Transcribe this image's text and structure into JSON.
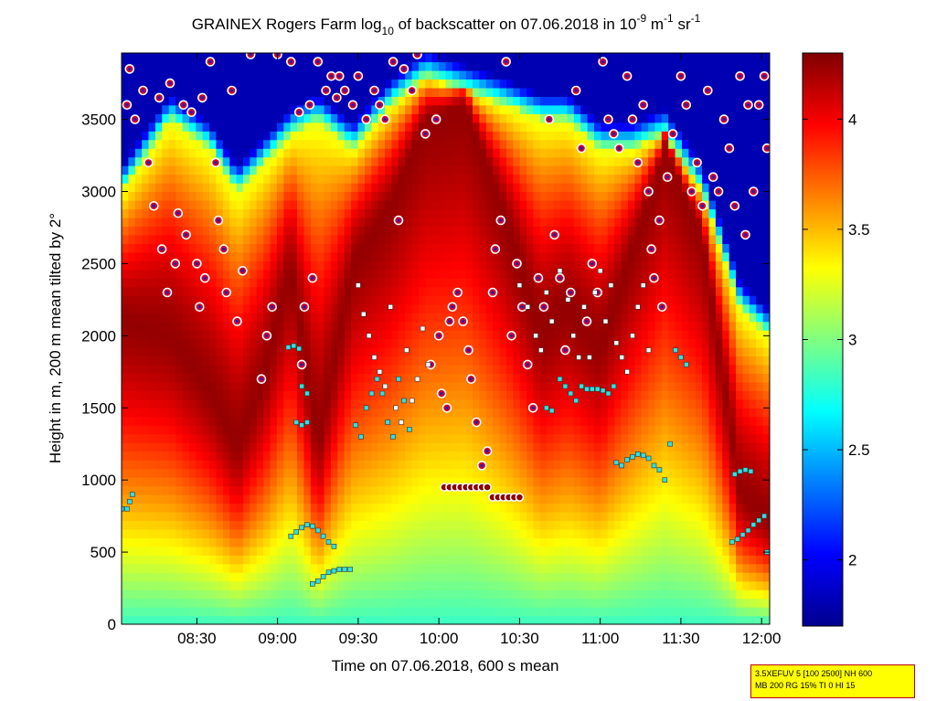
{
  "chart_data": {
    "type": "heatmap",
    "title": {
      "prefix": "GRAINEX Rogers Farm log",
      "sub": "10",
      "middle": " of backscatter on 07.06.2018 in 10",
      "sup1": "-9",
      "unit1": " m",
      "sup2": "-1",
      "unit2": " sr",
      "sup3": "-1"
    },
    "xlabel": "Time on 07.06.2018, 600 s mean",
    "ylabel": "Height in m, 200 m mean tilted by 2°",
    "xticks": [
      "08:30",
      "09:00",
      "09:30",
      "10:00",
      "10:30",
      "11:00",
      "11:30",
      "12:00"
    ],
    "xlim_minutes": [
      482,
      723
    ],
    "yticks": [
      0,
      500,
      1000,
      1500,
      2000,
      2500,
      3000,
      3500
    ],
    "ylim": [
      0,
      3960
    ],
    "colorbar": {
      "ticks": [
        2,
        2.5,
        3,
        3.5,
        4
      ],
      "range": [
        1.7,
        4.3
      ]
    },
    "field_columns": [
      {
        "t": 482,
        "peak": 2100,
        "top": 3000
      },
      {
        "t": 500,
        "peak": 2000,
        "top": 3500
      },
      {
        "t": 515,
        "peak": 1600,
        "top": 3300
      },
      {
        "t": 525,
        "peak": 1200,
        "top": 3000
      },
      {
        "t": 535,
        "peak": 1700,
        "top": 3200
      },
      {
        "t": 545,
        "peak": 2500,
        "top": 3400
      },
      {
        "t": 555,
        "peak": 1200,
        "top": 3500
      },
      {
        "t": 568,
        "peak": 2500,
        "top": 3300
      },
      {
        "t": 582,
        "peak": 2900,
        "top": 3600
      },
      {
        "t": 595,
        "peak": 3500,
        "top": 3800
      },
      {
        "t": 610,
        "peak": 3600,
        "top": 3700
      },
      {
        "t": 625,
        "peak": 2800,
        "top": 3600
      },
      {
        "t": 638,
        "peak": 2000,
        "top": 3500
      },
      {
        "t": 648,
        "peak": 2200,
        "top": 3500
      },
      {
        "t": 660,
        "peak": 1900,
        "top": 3300
      },
      {
        "t": 672,
        "peak": 2600,
        "top": 3300
      },
      {
        "t": 684,
        "peak": 3300,
        "top": 3400
      },
      {
        "t": 698,
        "peak": 2700,
        "top": 3000
      },
      {
        "t": 712,
        "peak": 900,
        "top": 2200
      },
      {
        "t": 723,
        "peak": 700,
        "top": 2000
      }
    ],
    "ceiling_markers": [
      [
        484,
        3600
      ],
      [
        485,
        3850
      ],
      [
        487,
        3500
      ],
      [
        490,
        3700
      ],
      [
        492,
        3200
      ],
      [
        494,
        2900
      ],
      [
        496,
        3650
      ],
      [
        497,
        2600
      ],
      [
        499,
        2300
      ],
      [
        500,
        3750
      ],
      [
        502,
        2500
      ],
      [
        503,
        2850
      ],
      [
        505,
        3600
      ],
      [
        506,
        2700
      ],
      [
        508,
        3550
      ],
      [
        510,
        2500
      ],
      [
        511,
        2200
      ],
      [
        512,
        3650
      ],
      [
        513,
        2400
      ],
      [
        515,
        3900
      ],
      [
        517,
        3200
      ],
      [
        518,
        2800
      ],
      [
        520,
        2600
      ],
      [
        521,
        2300
      ],
      [
        523,
        3700
      ],
      [
        525,
        2100
      ],
      [
        527,
        2450
      ],
      [
        530,
        3950
      ],
      [
        534,
        1700
      ],
      [
        536,
        2000
      ],
      [
        538,
        2200
      ],
      [
        540,
        3950
      ],
      [
        545,
        3900
      ],
      [
        548,
        3550
      ],
      [
        549,
        1800
      ],
      [
        550,
        2200
      ],
      [
        552,
        3600
      ],
      [
        553,
        2400
      ],
      [
        555,
        3900
      ],
      [
        558,
        3700
      ],
      [
        560,
        3800
      ],
      [
        562,
        3650
      ],
      [
        563,
        3800
      ],
      [
        565,
        3700
      ],
      [
        568,
        3600
      ],
      [
        570,
        3800
      ],
      [
        573,
        3500
      ],
      [
        576,
        3700
      ],
      [
        578,
        3600
      ],
      [
        580,
        3500
      ],
      [
        583,
        3900
      ],
      [
        585,
        2800
      ],
      [
        587,
        3850
      ],
      [
        590,
        3700
      ],
      [
        592,
        3950
      ],
      [
        595,
        3400
      ],
      [
        597,
        1800
      ],
      [
        599,
        3500
      ],
      [
        600,
        2000
      ],
      [
        601,
        1600
      ],
      [
        603,
        1500
      ],
      [
        604,
        2100
      ],
      [
        605,
        2200
      ],
      [
        607,
        2300
      ],
      [
        609,
        2100
      ],
      [
        611,
        1900
      ],
      [
        612,
        1700
      ],
      [
        614,
        1400
      ],
      [
        616,
        1100
      ],
      [
        618,
        1200
      ],
      [
        620,
        2300
      ],
      [
        621,
        2600
      ],
      [
        623,
        2800
      ],
      [
        625,
        3900
      ],
      [
        627,
        2000
      ],
      [
        629,
        2500
      ],
      [
        631,
        2200
      ],
      [
        633,
        1800
      ],
      [
        635,
        1500
      ],
      [
        637,
        2400
      ],
      [
        639,
        2200
      ],
      [
        641,
        3500
      ],
      [
        643,
        2700
      ],
      [
        645,
        2400
      ],
      [
        647,
        1900
      ],
      [
        649,
        2300
      ],
      [
        651,
        3700
      ],
      [
        653,
        3300
      ],
      [
        655,
        2100
      ],
      [
        657,
        2500
      ],
      [
        659,
        2300
      ],
      [
        661,
        3900
      ],
      [
        663,
        3500
      ],
      [
        665,
        3400
      ],
      [
        667,
        3300
      ],
      [
        670,
        3800
      ],
      [
        672,
        3500
      ],
      [
        674,
        3200
      ],
      [
        676,
        3600
      ],
      [
        678,
        3000
      ],
      [
        679,
        2600
      ],
      [
        680,
        2400
      ],
      [
        682,
        2800
      ],
      [
        683,
        2200
      ],
      [
        685,
        3100
      ],
      [
        687,
        3400
      ],
      [
        690,
        3800
      ],
      [
        692,
        3600
      ],
      [
        694,
        3000
      ],
      [
        696,
        3200
      ],
      [
        698,
        2900
      ],
      [
        700,
        3700
      ],
      [
        702,
        3100
      ],
      [
        704,
        3000
      ],
      [
        706,
        3500
      ],
      [
        708,
        3300
      ],
      [
        710,
        2900
      ],
      [
        712,
        3800
      ],
      [
        714,
        2700
      ],
      [
        715,
        3600
      ],
      [
        717,
        3000
      ],
      [
        719,
        3600
      ],
      [
        721,
        3800
      ],
      [
        722,
        3300
      ]
    ],
    "layer_markers_white": [
      [
        570,
        2350
      ],
      [
        572,
        2150
      ],
      [
        574,
        2000
      ],
      [
        576,
        1850
      ],
      [
        578,
        1750
      ],
      [
        580,
        1650
      ],
      [
        582,
        2200
      ],
      [
        584,
        1500
      ],
      [
        586,
        1400
      ],
      [
        588,
        1900
      ],
      [
        590,
        1550
      ],
      [
        592,
        1700
      ],
      [
        594,
        2050
      ],
      [
        596,
        1800
      ],
      [
        630,
        2350
      ],
      [
        633,
        2200
      ],
      [
        636,
        2000
      ],
      [
        638,
        1900
      ],
      [
        640,
        2300
      ],
      [
        642,
        2100
      ],
      [
        645,
        2450
      ],
      [
        648,
        2250
      ],
      [
        650,
        2000
      ],
      [
        652,
        1850
      ],
      [
        654,
        2200
      ],
      [
        656,
        1850
      ],
      [
        658,
        2300
      ],
      [
        660,
        2450
      ],
      [
        662,
        2100
      ],
      [
        664,
        2350
      ],
      [
        666,
        1950
      ],
      [
        668,
        1850
      ],
      [
        670,
        1750
      ],
      [
        672,
        2000
      ],
      [
        674,
        2200
      ],
      [
        676,
        2350
      ],
      [
        678,
        1900
      ]
    ],
    "layer_markers_cyan": [
      [
        482,
        800
      ],
      [
        484,
        800
      ],
      [
        485,
        850
      ],
      [
        486,
        900
      ],
      [
        544,
        1920
      ],
      [
        546,
        1930
      ],
      [
        548,
        1910
      ],
      [
        547,
        1400
      ],
      [
        549,
        1380
      ],
      [
        551,
        1400
      ],
      [
        549,
        1650
      ],
      [
        551,
        1600
      ],
      [
        545,
        610
      ],
      [
        547,
        640
      ],
      [
        549,
        670
      ],
      [
        551,
        690
      ],
      [
        553,
        680
      ],
      [
        555,
        650
      ],
      [
        557,
        610
      ],
      [
        559,
        570
      ],
      [
        561,
        540
      ],
      [
        553,
        280
      ],
      [
        555,
        300
      ],
      [
        557,
        330
      ],
      [
        559,
        360
      ],
      [
        561,
        370
      ],
      [
        563,
        380
      ],
      [
        565,
        380
      ],
      [
        567,
        380
      ],
      [
        569,
        1380
      ],
      [
        571,
        1300
      ],
      [
        573,
        1500
      ],
      [
        575,
        1600
      ],
      [
        577,
        1700
      ],
      [
        579,
        1600
      ],
      [
        581,
        1400
      ],
      [
        583,
        1300
      ],
      [
        585,
        1700
      ],
      [
        587,
        1550
      ],
      [
        589,
        1350
      ],
      [
        640,
        1500
      ],
      [
        642,
        1480
      ],
      [
        645,
        1700
      ],
      [
        647,
        1650
      ],
      [
        649,
        1600
      ],
      [
        651,
        1550
      ],
      [
        653,
        1650
      ],
      [
        655,
        1630
      ],
      [
        657,
        1630
      ],
      [
        659,
        1630
      ],
      [
        661,
        1620
      ],
      [
        663,
        1600
      ],
      [
        665,
        1650
      ],
      [
        666,
        1120
      ],
      [
        668,
        1100
      ],
      [
        670,
        1140
      ],
      [
        672,
        1160
      ],
      [
        674,
        1180
      ],
      [
        676,
        1170
      ],
      [
        678,
        1150
      ],
      [
        680,
        1100
      ],
      [
        682,
        1070
      ],
      [
        684,
        1000
      ],
      [
        686,
        1250
      ],
      [
        688,
        1900
      ],
      [
        690,
        1850
      ],
      [
        692,
        1800
      ],
      [
        710,
        1040
      ],
      [
        712,
        1060
      ],
      [
        714,
        1070
      ],
      [
        716,
        1060
      ],
      [
        709,
        570
      ],
      [
        711,
        590
      ],
      [
        713,
        620
      ],
      [
        715,
        650
      ],
      [
        717,
        690
      ],
      [
        719,
        720
      ],
      [
        721,
        750
      ],
      [
        722,
        500
      ]
    ],
    "line_markers": [
      [
        602,
        950
      ],
      [
        604,
        950
      ],
      [
        606,
        950
      ],
      [
        608,
        950
      ],
      [
        610,
        950
      ],
      [
        612,
        950
      ],
      [
        614,
        950
      ],
      [
        616,
        950
      ],
      [
        618,
        950
      ],
      [
        620,
        880
      ],
      [
        622,
        880
      ],
      [
        624,
        880
      ],
      [
        626,
        880
      ],
      [
        628,
        880
      ],
      [
        630,
        880
      ]
    ]
  },
  "note": {
    "line1": "3.5XEFUV 5 [100 2500] NH 600",
    "line2": "MB 200 RG 15% TI 0 HI 15"
  }
}
